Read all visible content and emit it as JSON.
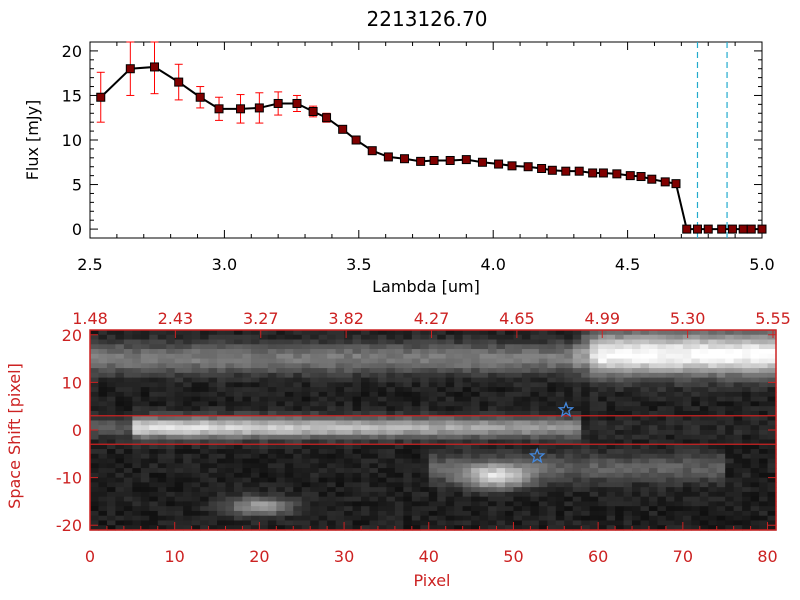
{
  "title": "2213126.70",
  "chart_data": [
    {
      "type": "line",
      "xlabel": "Lambda [um]",
      "ylabel": "Flux [mJy]",
      "xlim": [
        2.5,
        5.0
      ],
      "ylim": [
        -1,
        21
      ],
      "xticks": [
        "2.5",
        "3.0",
        "3.5",
        "4.0",
        "4.5",
        "5.0"
      ],
      "yticks": [
        "0",
        "5",
        "10",
        "15",
        "20"
      ],
      "series": [
        {
          "x": [
            2.54,
            2.65,
            2.74,
            2.83,
            2.91,
            2.98,
            3.06,
            3.13,
            3.2,
            3.27,
            3.33,
            3.38,
            3.44,
            3.49,
            3.55,
            3.61,
            3.67,
            3.73,
            3.78,
            3.84,
            3.9,
            3.96,
            4.02,
            4.07,
            4.13,
            4.18,
            4.22,
            4.27,
            4.32,
            4.37,
            4.41,
            4.46,
            4.51,
            4.55,
            4.59,
            4.64,
            4.68,
            4.72,
            4.76,
            4.8,
            4.85,
            4.89,
            4.93,
            4.96,
            5.0
          ],
          "values": [
            14.8,
            18.0,
            18.2,
            16.5,
            14.8,
            13.5,
            13.5,
            13.6,
            14.1,
            14.1,
            13.2,
            12.5,
            11.2,
            10.0,
            8.8,
            8.1,
            7.9,
            7.6,
            7.7,
            7.7,
            7.8,
            7.5,
            7.3,
            7.1,
            7.0,
            6.8,
            6.6,
            6.5,
            6.5,
            6.3,
            6.3,
            6.2,
            6.0,
            5.9,
            5.6,
            5.3,
            5.1,
            0.0,
            0.0,
            0.0,
            0.0,
            0.0,
            0.0,
            0.0,
            0.0
          ],
          "errors": [
            2.8,
            3.0,
            3.0,
            2.0,
            1.2,
            1.3,
            1.6,
            1.7,
            1.3,
            0.9,
            0.6,
            0.5,
            0.4,
            0.3,
            0.3,
            0.3,
            0.2,
            0.2,
            0.2,
            0.2,
            0.2,
            0.2,
            0.2,
            0.2,
            0.2,
            0.2,
            0.2,
            0.2,
            0.2,
            0.2,
            0.2,
            0.2,
            0.2,
            0.2,
            0.2,
            0.3,
            0.3,
            0.2,
            0.1,
            0.1,
            0.1,
            0.1,
            0.1,
            0.1,
            0.1
          ]
        }
      ],
      "vlines": [
        4.76,
        4.87
      ],
      "colors": {
        "line": "#000000",
        "marker": "#800000",
        "errorbar": "#ff0000",
        "vline": "#22aacc",
        "axis": "#000000"
      }
    },
    {
      "type": "heatmap",
      "xlabel": "Pixel",
      "ylabel": "Space Shift [pixel]",
      "xlim": [
        0,
        81
      ],
      "ylim": [
        -21,
        21
      ],
      "xticks": [
        "0",
        "10",
        "20",
        "30",
        "40",
        "50",
        "60",
        "70",
        "80"
      ],
      "yticks": [
        "-20",
        "-10",
        "0",
        "10",
        "20"
      ],
      "top_ticks": [
        "1.48",
        "2.43",
        "3.27",
        "3.82",
        "4.27",
        "4.65",
        "4.99",
        "5.30",
        "5.55"
      ],
      "hlines": [
        3,
        -3
      ],
      "stars": [
        [
          56.2,
          4.2
        ],
        [
          52.8,
          -5.5
        ]
      ],
      "colors": {
        "axis": "#cc2222",
        "line": "#cc2222",
        "star": "#4488dd"
      }
    }
  ]
}
